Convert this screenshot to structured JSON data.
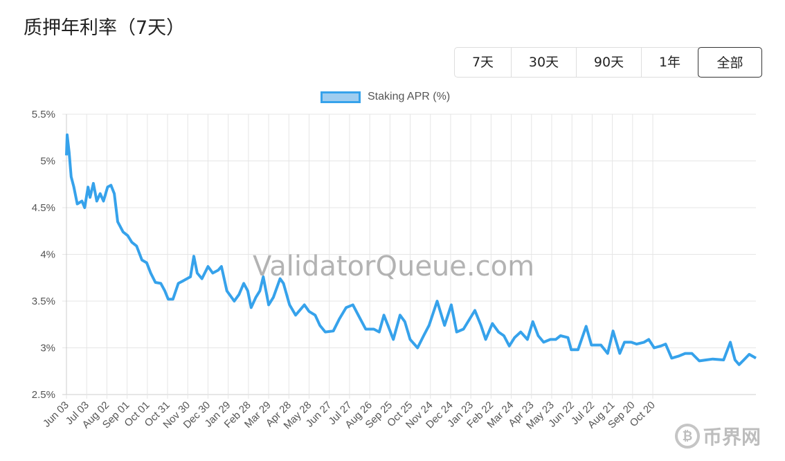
{
  "header": {
    "title": "质押年利率（7天）"
  },
  "range_buttons": [
    {
      "label": "7天",
      "active": false
    },
    {
      "label": "30天",
      "active": false
    },
    {
      "label": "90天",
      "active": false
    },
    {
      "label": "1年",
      "active": false
    },
    {
      "label": "全部",
      "active": true
    }
  ],
  "watermark": "ValidatorQueue.com",
  "logo": {
    "text": "币界网"
  },
  "chart_data": {
    "type": "line",
    "title": "",
    "xlabel": "",
    "ylabel": "",
    "legend": {
      "label": "Staking APR (%)",
      "placement": "top-center"
    },
    "colors": {
      "line": "#36a2eb",
      "legend_fill": "#9fcdf0",
      "grid": "#e5e5e5"
    },
    "ylim": [
      2.5,
      5.5
    ],
    "yticks": [
      2.5,
      3,
      3.5,
      4,
      4.5,
      5,
      5.5
    ],
    "ytick_labels": [
      "2.5%",
      "3%",
      "3.5%",
      "4%",
      "4.5%",
      "5%",
      "5.5%"
    ],
    "xlim_days": [
      0,
      1023
    ],
    "xtick_step_days": 30,
    "xtick_labels": [
      "Jun 03",
      "Jul 03",
      "Aug 02",
      "Sep 01",
      "Oct 01",
      "Oct 31",
      "Nov 30",
      "Dec 30",
      "Jan 29",
      "Feb 28",
      "Mar 29",
      "Apr 28",
      "May 28",
      "Jun 27",
      "Jul 27",
      "Aug 26",
      "Sep 25",
      "Oct 25",
      "Nov 24",
      "Dec 24",
      "Jan 23",
      "Feb 22",
      "Mar 24",
      "Apr 23",
      "May 23",
      "Jun 22",
      "Jul 22",
      "Aug 21",
      "Sep 20",
      "Oct 20"
    ],
    "grid": true,
    "series": [
      {
        "name": "Staking APR (%)",
        "points": [
          [
            0,
            5.06
          ],
          [
            1,
            5.28
          ],
          [
            4,
            5.09
          ],
          [
            7,
            4.83
          ],
          [
            11,
            4.72
          ],
          [
            16,
            4.54
          ],
          [
            23,
            4.57
          ],
          [
            27,
            4.5
          ],
          [
            32,
            4.72
          ],
          [
            35,
            4.61
          ],
          [
            40,
            4.76
          ],
          [
            45,
            4.57
          ],
          [
            50,
            4.65
          ],
          [
            55,
            4.57
          ],
          [
            61,
            4.72
          ],
          [
            66,
            4.74
          ],
          [
            71,
            4.65
          ],
          [
            76,
            4.35
          ],
          [
            84,
            4.24
          ],
          [
            91,
            4.2
          ],
          [
            97,
            4.13
          ],
          [
            104,
            4.09
          ],
          [
            112,
            3.94
          ],
          [
            119,
            3.91
          ],
          [
            125,
            3.8
          ],
          [
            132,
            3.7
          ],
          [
            140,
            3.69
          ],
          [
            146,
            3.61
          ],
          [
            151,
            3.52
          ],
          [
            158,
            3.52
          ],
          [
            166,
            3.69
          ],
          [
            174,
            3.72
          ],
          [
            184,
            3.76
          ],
          [
            189,
            3.98
          ],
          [
            194,
            3.8
          ],
          [
            201,
            3.74
          ],
          [
            210,
            3.87
          ],
          [
            217,
            3.8
          ],
          [
            225,
            3.83
          ],
          [
            230,
            3.87
          ],
          [
            238,
            3.61
          ],
          [
            249,
            3.5
          ],
          [
            256,
            3.57
          ],
          [
            263,
            3.69
          ],
          [
            269,
            3.61
          ],
          [
            274,
            3.43
          ],
          [
            281,
            3.54
          ],
          [
            287,
            3.61
          ],
          [
            292,
            3.76
          ],
          [
            300,
            3.46
          ],
          [
            307,
            3.54
          ],
          [
            317,
            3.74
          ],
          [
            322,
            3.69
          ],
          [
            331,
            3.46
          ],
          [
            340,
            3.35
          ],
          [
            353,
            3.46
          ],
          [
            360,
            3.39
          ],
          [
            369,
            3.35
          ],
          [
            376,
            3.24
          ],
          [
            384,
            3.17
          ],
          [
            396,
            3.18
          ],
          [
            405,
            3.31
          ],
          [
            415,
            3.43
          ],
          [
            425,
            3.46
          ],
          [
            433,
            3.35
          ],
          [
            444,
            3.2
          ],
          [
            456,
            3.2
          ],
          [
            464,
            3.17
          ],
          [
            471,
            3.35
          ],
          [
            477,
            3.24
          ],
          [
            485,
            3.09
          ],
          [
            495,
            3.35
          ],
          [
            502,
            3.28
          ],
          [
            510,
            3.09
          ],
          [
            521,
            3.0
          ],
          [
            530,
            3.13
          ],
          [
            538,
            3.24
          ],
          [
            550,
            3.5
          ],
          [
            561,
            3.24
          ],
          [
            571,
            3.46
          ],
          [
            579,
            3.17
          ],
          [
            589,
            3.2
          ],
          [
            606,
            3.4
          ],
          [
            615,
            3.24
          ],
          [
            622,
            3.09
          ],
          [
            632,
            3.26
          ],
          [
            641,
            3.17
          ],
          [
            649,
            3.13
          ],
          [
            657,
            3.02
          ],
          [
            665,
            3.11
          ],
          [
            674,
            3.17
          ],
          [
            684,
            3.09
          ],
          [
            692,
            3.28
          ],
          [
            700,
            3.13
          ],
          [
            708,
            3.06
          ],
          [
            718,
            3.09
          ],
          [
            726,
            3.09
          ],
          [
            733,
            3.13
          ],
          [
            744,
            3.11
          ],
          [
            749,
            2.98
          ],
          [
            759,
            2.98
          ],
          [
            771,
            3.23
          ],
          [
            779,
            3.03
          ],
          [
            793,
            3.03
          ],
          [
            803,
            2.94
          ],
          [
            811,
            3.18
          ],
          [
            821,
            2.94
          ],
          [
            828,
            3.06
          ],
          [
            838,
            3.06
          ],
          [
            846,
            3.04
          ],
          [
            857,
            3.06
          ],
          [
            864,
            3.09
          ],
          [
            872,
            3.0
          ],
          [
            882,
            3.02
          ],
          [
            889,
            3.04
          ],
          [
            898,
            2.89
          ],
          [
            908,
            2.91
          ],
          [
            918,
            2.94
          ],
          [
            928,
            2.94
          ],
          [
            939,
            2.86
          ],
          [
            949,
            2.87
          ],
          [
            959,
            2.88
          ],
          [
            975,
            2.87
          ],
          [
            985,
            3.06
          ],
          [
            992,
            2.87
          ],
          [
            998,
            2.82
          ],
          [
            1005,
            2.87
          ],
          [
            1013,
            2.93
          ],
          [
            1023,
            2.89
          ]
        ]
      }
    ]
  }
}
